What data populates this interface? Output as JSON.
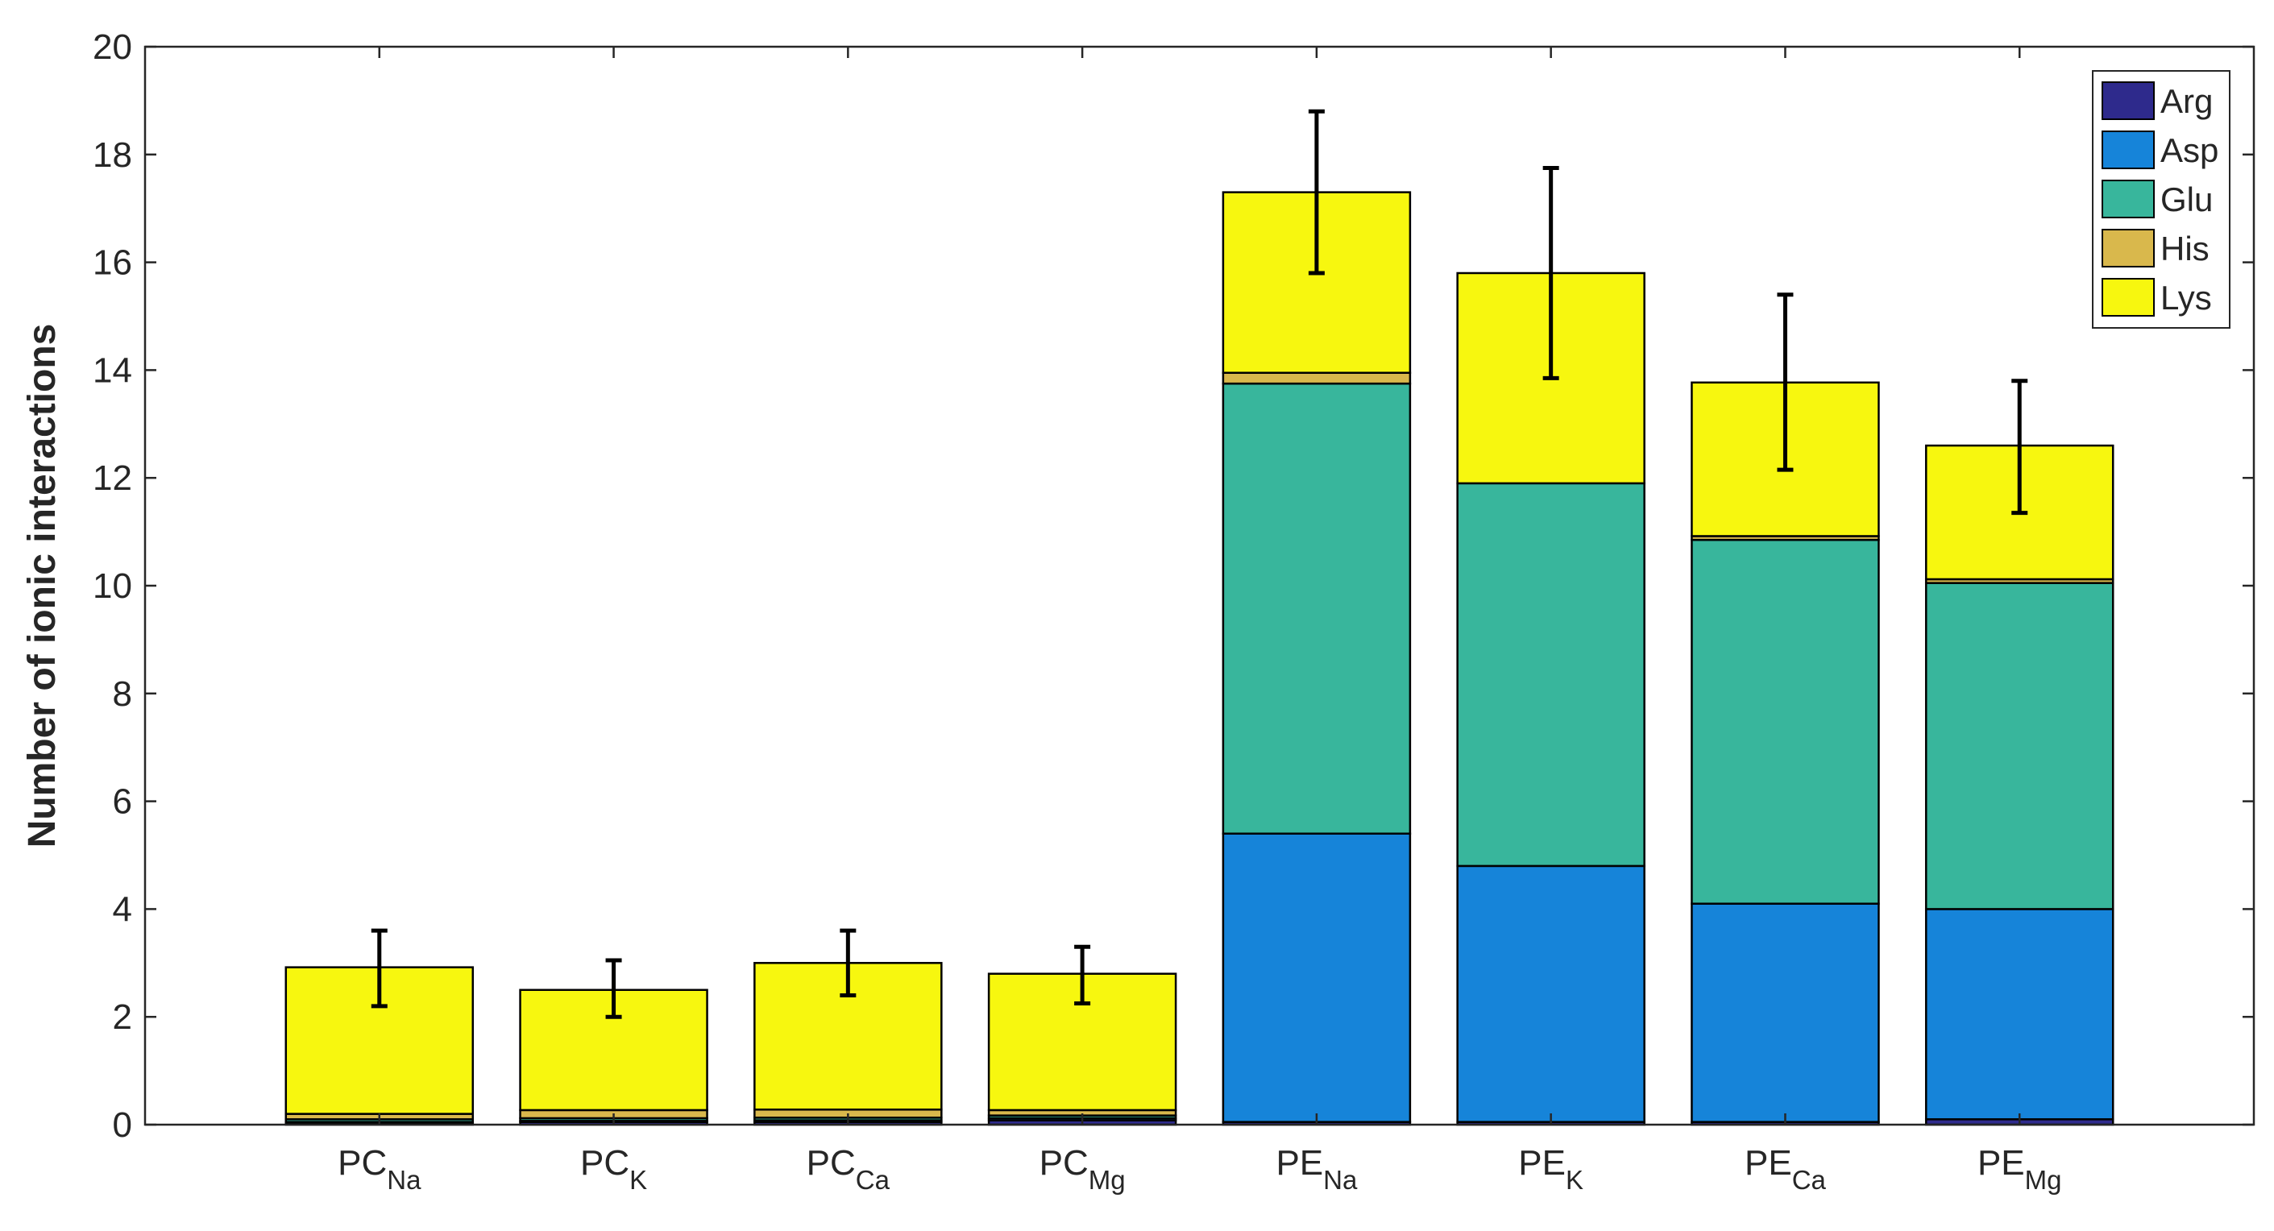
{
  "chart_data": {
    "type": "bar",
    "stacked": true,
    "title": "",
    "xlabel": "",
    "ylabel": "Number of ionic interactions",
    "ylim": [
      0,
      20
    ],
    "yticks": [
      0,
      2,
      4,
      6,
      8,
      10,
      12,
      14,
      16,
      18,
      20
    ],
    "grid": false,
    "legend_position": "top-right",
    "categories": [
      {
        "base": "PC",
        "sub": "Na"
      },
      {
        "base": "PC",
        "sub": "K"
      },
      {
        "base": "PC",
        "sub": "Ca"
      },
      {
        "base": "PC",
        "sub": "Mg"
      },
      {
        "base": "PE",
        "sub": "Na"
      },
      {
        "base": "PE",
        "sub": "K"
      },
      {
        "base": "PE",
        "sub": "Ca"
      },
      {
        "base": "PE",
        "sub": "Mg"
      }
    ],
    "series": [
      {
        "name": "Arg",
        "color": "#2e2a8c",
        "values": [
          0.02,
          0.05,
          0.05,
          0.08,
          0.05,
          0.05,
          0.05,
          0.1
        ]
      },
      {
        "name": "Asp",
        "color": "#1684d9",
        "values": [
          0.03,
          0.02,
          0.03,
          0.04,
          5.35,
          4.75,
          4.05,
          3.9
        ]
      },
      {
        "name": "Glu",
        "color": "#38b69c",
        "values": [
          0.05,
          0.05,
          0.05,
          0.05,
          8.35,
          7.1,
          6.75,
          6.05
        ]
      },
      {
        "name": "His",
        "color": "#d9b84c",
        "values": [
          0.1,
          0.15,
          0.15,
          0.1,
          0.2,
          0.0,
          0.07,
          0.07
        ]
      },
      {
        "name": "Lys",
        "color": "#f7f70f",
        "values": [
          2.72,
          2.23,
          2.72,
          2.53,
          3.35,
          3.9,
          2.85,
          2.48
        ]
      }
    ],
    "error_bars": [
      {
        "center": 2.9,
        "low": 2.2,
        "high": 3.6
      },
      {
        "center": 2.5,
        "low": 2.0,
        "high": 3.05
      },
      {
        "center": 3.0,
        "low": 2.4,
        "high": 3.6
      },
      {
        "center": 2.8,
        "low": 2.25,
        "high": 3.3
      },
      {
        "center": 17.3,
        "low": 15.8,
        "high": 18.8
      },
      {
        "center": 15.8,
        "low": 13.85,
        "high": 17.75
      },
      {
        "center": 13.8,
        "low": 12.15,
        "high": 15.4
      },
      {
        "center": 12.6,
        "low": 11.35,
        "high": 13.8
      }
    ]
  }
}
